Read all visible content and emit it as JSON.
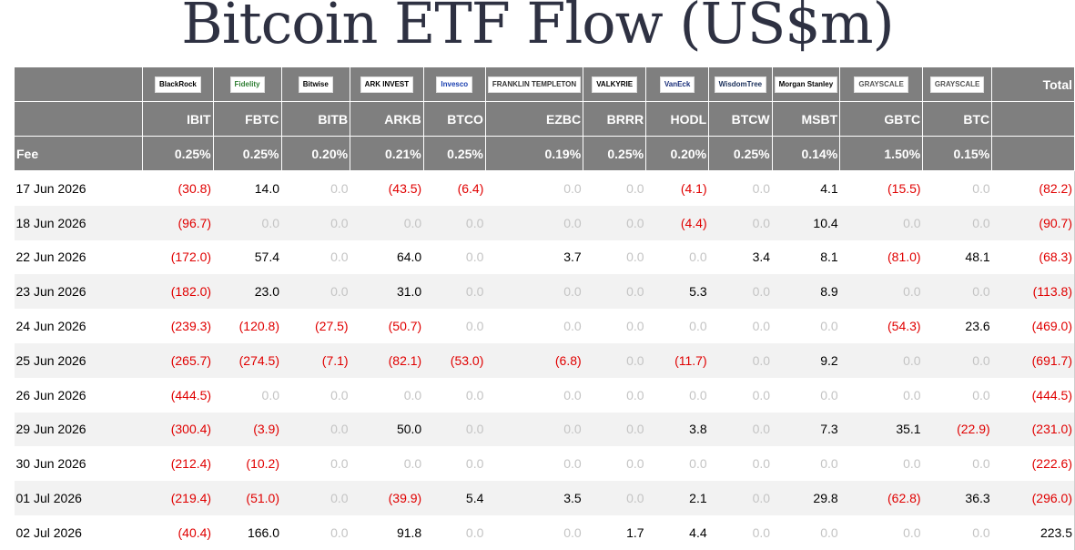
{
  "title": "Bitcoin ETF Flow (US$m)",
  "header": {
    "total_label": "Total",
    "fee_label": "Fee"
  },
  "funds": [
    {
      "logo": "BlackRock",
      "code": "IBIT",
      "fee": "0.25%",
      "logo_bg": "#ffffff",
      "logo_fg": "#000000"
    },
    {
      "logo": "Fidelity",
      "code": "FBTC",
      "fee": "0.25%",
      "logo_bg": "#ffffff",
      "logo_fg": "#2e7d32"
    },
    {
      "logo": "Bitwise",
      "code": "BITB",
      "fee": "0.20%",
      "logo_bg": "#ffffff",
      "logo_fg": "#000000"
    },
    {
      "logo": "ARK INVEST",
      "code": "ARKB",
      "fee": "0.21%",
      "logo_bg": "#ffffff",
      "logo_fg": "#000000"
    },
    {
      "logo": "Invesco",
      "code": "BTCO",
      "fee": "0.25%",
      "logo_bg": "#ffffff",
      "logo_fg": "#1a3fb0"
    },
    {
      "logo": "FRANKLIN TEMPLETON",
      "code": "EZBC",
      "fee": "0.19%",
      "logo_bg": "#ffffff",
      "logo_fg": "#333333"
    },
    {
      "logo": "VALKYRIE",
      "code": "BRRR",
      "fee": "0.25%",
      "logo_bg": "#ffffff",
      "logo_fg": "#000000"
    },
    {
      "logo": "VanEck",
      "code": "HODL",
      "fee": "0.20%",
      "logo_bg": "#ffffff",
      "logo_fg": "#1a2f7a"
    },
    {
      "logo": "WisdomTree",
      "code": "BTCW",
      "fee": "0.25%",
      "logo_bg": "#ffffff",
      "logo_fg": "#1a2f5a"
    },
    {
      "logo": "Morgan Stanley",
      "code": "MSBT",
      "fee": "0.14%",
      "logo_bg": "#ffffff",
      "logo_fg": "#000000"
    },
    {
      "logo": "GRAYSCALE",
      "code": "GBTC",
      "fee": "1.50%",
      "logo_bg": "#ffffff",
      "logo_fg": "#555555"
    },
    {
      "logo": "GRAYSCALE",
      "code": "BTC",
      "fee": "0.15%",
      "logo_bg": "#ffffff",
      "logo_fg": "#555555"
    }
  ],
  "rows": [
    {
      "date": "17 Jun 2026",
      "values": [
        "(30.8)",
        "14.0",
        "0.0",
        "(43.5)",
        "(6.4)",
        "0.0",
        "0.0",
        "(4.1)",
        "0.0",
        "4.1",
        "(15.5)",
        "0.0"
      ],
      "total": "(82.2)"
    },
    {
      "date": "18 Jun 2026",
      "values": [
        "(96.7)",
        "0.0",
        "0.0",
        "0.0",
        "0.0",
        "0.0",
        "0.0",
        "(4.4)",
        "0.0",
        "10.4",
        "0.0",
        "0.0"
      ],
      "total": "(90.7)"
    },
    {
      "date": "22 Jun 2026",
      "values": [
        "(172.0)",
        "57.4",
        "0.0",
        "64.0",
        "0.0",
        "3.7",
        "0.0",
        "0.0",
        "3.4",
        "8.1",
        "(81.0)",
        "48.1"
      ],
      "total": "(68.3)"
    },
    {
      "date": "23 Jun 2026",
      "values": [
        "(182.0)",
        "23.0",
        "0.0",
        "31.0",
        "0.0",
        "0.0",
        "0.0",
        "5.3",
        "0.0",
        "8.9",
        "0.0",
        "0.0"
      ],
      "total": "(113.8)"
    },
    {
      "date": "24 Jun 2026",
      "values": [
        "(239.3)",
        "(120.8)",
        "(27.5)",
        "(50.7)",
        "0.0",
        "0.0",
        "0.0",
        "0.0",
        "0.0",
        "0.0",
        "(54.3)",
        "23.6"
      ],
      "total": "(469.0)"
    },
    {
      "date": "25 Jun 2026",
      "values": [
        "(265.7)",
        "(274.5)",
        "(7.1)",
        "(82.1)",
        "(53.0)",
        "(6.8)",
        "0.0",
        "(11.7)",
        "0.0",
        "9.2",
        "0.0",
        "0.0"
      ],
      "total": "(691.7)"
    },
    {
      "date": "26 Jun 2026",
      "values": [
        "(444.5)",
        "0.0",
        "0.0",
        "0.0",
        "0.0",
        "0.0",
        "0.0",
        "0.0",
        "0.0",
        "0.0",
        "0.0",
        "0.0"
      ],
      "total": "(444.5)"
    },
    {
      "date": "29 Jun 2026",
      "values": [
        "(300.4)",
        "(3.9)",
        "0.0",
        "50.0",
        "0.0",
        "0.0",
        "0.0",
        "3.8",
        "0.0",
        "7.3",
        "35.1",
        "(22.9)"
      ],
      "total": "(231.0)"
    },
    {
      "date": "30 Jun 2026",
      "values": [
        "(212.4)",
        "(10.2)",
        "0.0",
        "0.0",
        "0.0",
        "0.0",
        "0.0",
        "0.0",
        "0.0",
        "0.0",
        "0.0",
        "0.0"
      ],
      "total": "(222.6)"
    },
    {
      "date": "01 Jul 2026",
      "values": [
        "(219.4)",
        "(51.0)",
        "0.0",
        "(39.9)",
        "5.4",
        "3.5",
        "0.0",
        "2.1",
        "0.0",
        "29.8",
        "(62.8)",
        "36.3"
      ],
      "total": "(296.0)"
    },
    {
      "date": "02 Jul 2026",
      "values": [
        "(40.4)",
        "166.0",
        "0.0",
        "91.8",
        "0.0",
        "0.0",
        "1.7",
        "4.4",
        "0.0",
        "0.0",
        "0.0",
        "0.0"
      ],
      "total": "223.5"
    }
  ],
  "colors": {
    "header_bg": "#7f7f7f",
    "negative": "#e00000",
    "zero": "#c4c4c4",
    "stripe": "#f2f2f2",
    "title": "#2e3142"
  }
}
